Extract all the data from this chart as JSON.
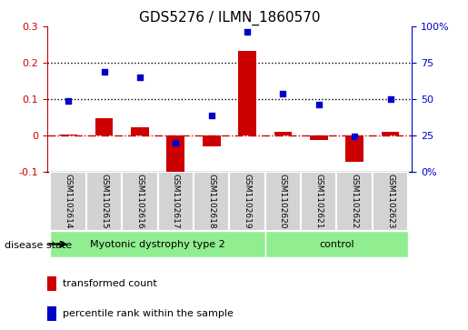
{
  "title": "GDS5276 / ILMN_1860570",
  "samples": [
    "GSM1102614",
    "GSM1102615",
    "GSM1102616",
    "GSM1102617",
    "GSM1102618",
    "GSM1102619",
    "GSM1102620",
    "GSM1102621",
    "GSM1102622",
    "GSM1102623"
  ],
  "red_bars": [
    0.001,
    0.048,
    0.022,
    -0.125,
    -0.03,
    0.232,
    0.01,
    -0.012,
    -0.072,
    0.01
  ],
  "blue_dots": [
    0.095,
    0.175,
    0.16,
    -0.02,
    0.055,
    0.285,
    0.115,
    0.085,
    -0.002,
    0.1
  ],
  "ylim": [
    -0.1,
    0.3
  ],
  "yticks_left": [
    -0.1,
    0.0,
    0.1,
    0.2,
    0.3
  ],
  "yticks_right": [
    0,
    25,
    50,
    75,
    100
  ],
  "ytick_labels_left": [
    "-0.1",
    "0",
    "0.1",
    "0.2",
    "0.3"
  ],
  "ytick_labels_right": [
    "0%",
    "25",
    "50",
    "75",
    "100%"
  ],
  "hlines": [
    0.1,
    0.2
  ],
  "zero_line": 0.0,
  "disease_groups": [
    {
      "label": "Myotonic dystrophy type 2",
      "start": 0,
      "end": 6,
      "color": "#90EE90"
    },
    {
      "label": "control",
      "start": 6,
      "end": 10,
      "color": "#90EE90"
    }
  ],
  "disease_state_label": "disease state",
  "bar_width": 0.5,
  "red_color": "#CC0000",
  "blue_color": "#0000CC",
  "bg_color": "#FFFFFF",
  "plot_bg_color": "#FFFFFF",
  "legend_red": "transformed count",
  "legend_blue": "percentile rank within the sample",
  "left_axis_color": "#CC0000",
  "right_axis_color": "#0000CC",
  "grid_color": "#000000"
}
